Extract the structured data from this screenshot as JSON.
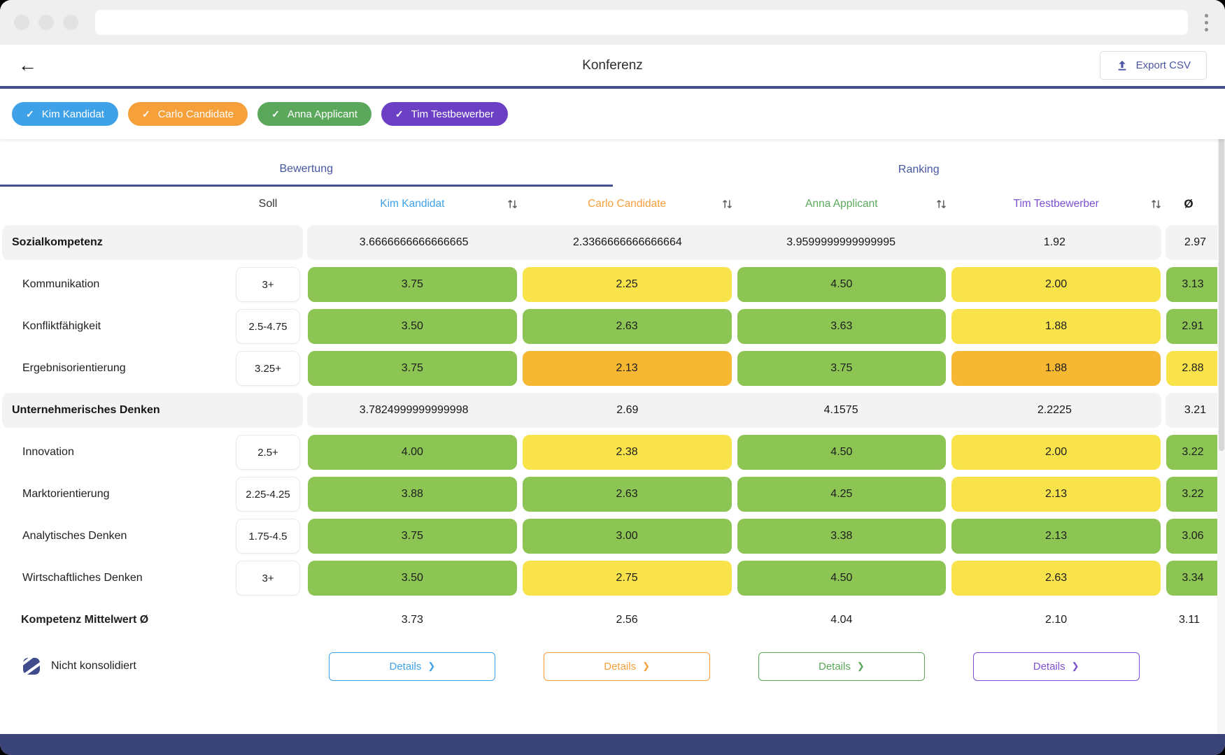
{
  "header": {
    "title": "Konferenz",
    "back_icon": "←",
    "export_label": "Export CSV"
  },
  "chips": [
    {
      "label": "Kim Kandidat",
      "color": "#3FA2E8",
      "check": "✓"
    },
    {
      "label": "Carlo Candidate",
      "color": "#F5A03B",
      "check": "✓"
    },
    {
      "label": "Anna Applicant",
      "color": "#5BA85C",
      "check": "✓"
    },
    {
      "label": "Tim Testbewerber",
      "color": "#6B40C4",
      "check": "✓"
    }
  ],
  "tabs": [
    {
      "label": "Bewertung",
      "active": true
    },
    {
      "label": "Ranking",
      "active": false
    }
  ],
  "table": {
    "soll_header": "Soll",
    "avg_header": "Ø",
    "candidates": [
      {
        "name": "Kim Kandidat",
        "color": "#3FA2E8"
      },
      {
        "name": "Carlo Candidate",
        "color": "#F5A03B"
      },
      {
        "name": "Anna Applicant",
        "color": "#5BA85C"
      },
      {
        "name": "Tim Testbewerber",
        "color": "#7B50D2"
      }
    ],
    "rows": [
      {
        "type": "group",
        "label": "Sozialkompetenz",
        "values": [
          "3.6666666666666665",
          "2.3366666666666664",
          "3.9599999999999995",
          "1.92"
        ],
        "avg": "2.97"
      },
      {
        "type": "item",
        "label": "Kommunikation",
        "soll": "3+",
        "cells": [
          {
            "v": "3.75",
            "c": "green"
          },
          {
            "v": "2.25",
            "c": "yellow"
          },
          {
            "v": "4.50",
            "c": "green"
          },
          {
            "v": "2.00",
            "c": "yellow"
          }
        ],
        "avg": {
          "v": "3.13",
          "c": "green"
        }
      },
      {
        "type": "item",
        "label": "Konfliktfähigkeit",
        "soll": "2.5-4.75",
        "cells": [
          {
            "v": "3.50",
            "c": "green"
          },
          {
            "v": "2.63",
            "c": "green"
          },
          {
            "v": "3.63",
            "c": "green"
          },
          {
            "v": "1.88",
            "c": "yellow"
          }
        ],
        "avg": {
          "v": "2.91",
          "c": "green"
        }
      },
      {
        "type": "item",
        "label": "Ergebnisorientierung",
        "soll": "3.25+",
        "cells": [
          {
            "v": "3.75",
            "c": "green"
          },
          {
            "v": "2.13",
            "c": "orange"
          },
          {
            "v": "3.75",
            "c": "green"
          },
          {
            "v": "1.88",
            "c": "orange"
          }
        ],
        "avg": {
          "v": "2.88",
          "c": "yellow"
        }
      },
      {
        "type": "group",
        "label": "Unternehmerisches Denken",
        "values": [
          "3.7824999999999998",
          "2.69",
          "4.1575",
          "2.2225"
        ],
        "avg": "3.21"
      },
      {
        "type": "item",
        "label": "Innovation",
        "soll": "2.5+",
        "cells": [
          {
            "v": "4.00",
            "c": "green"
          },
          {
            "v": "2.38",
            "c": "yellow"
          },
          {
            "v": "4.50",
            "c": "green"
          },
          {
            "v": "2.00",
            "c": "yellow"
          }
        ],
        "avg": {
          "v": "3.22",
          "c": "green"
        }
      },
      {
        "type": "item",
        "label": "Marktorientierung",
        "soll": "2.25-4.25",
        "cells": [
          {
            "v": "3.88",
            "c": "green"
          },
          {
            "v": "2.63",
            "c": "green"
          },
          {
            "v": "4.25",
            "c": "green"
          },
          {
            "v": "2.13",
            "c": "yellow"
          }
        ],
        "avg": {
          "v": "3.22",
          "c": "green"
        }
      },
      {
        "type": "item",
        "label": "Analytisches Denken",
        "soll": "1.75-4.5",
        "cells": [
          {
            "v": "3.75",
            "c": "green"
          },
          {
            "v": "3.00",
            "c": "green"
          },
          {
            "v": "3.38",
            "c": "green"
          },
          {
            "v": "2.13",
            "c": "green"
          }
        ],
        "avg": {
          "v": "3.06",
          "c": "green"
        }
      },
      {
        "type": "item",
        "label": "Wirtschaftliches Denken",
        "soll": "3+",
        "cells": [
          {
            "v": "3.50",
            "c": "green"
          },
          {
            "v": "2.75",
            "c": "yellow"
          },
          {
            "v": "4.50",
            "c": "green"
          },
          {
            "v": "2.63",
            "c": "yellow"
          }
        ],
        "avg": {
          "v": "3.34",
          "c": "green"
        }
      }
    ],
    "footer_row": {
      "label": "Kompetenz Mittelwert Ø",
      "values": [
        "3.73",
        "2.56",
        "4.04",
        "2.10"
      ],
      "avg": "3.11"
    },
    "details_label": "Details",
    "details_chevron": "❯",
    "legend_label": "Nicht konsolidiert"
  },
  "palette": {
    "green": "#8DC554",
    "yellow": "#F8E34B",
    "orange": "#F6B733",
    "group_bg": "#F3F3F3",
    "indigo": "#454F8F"
  }
}
